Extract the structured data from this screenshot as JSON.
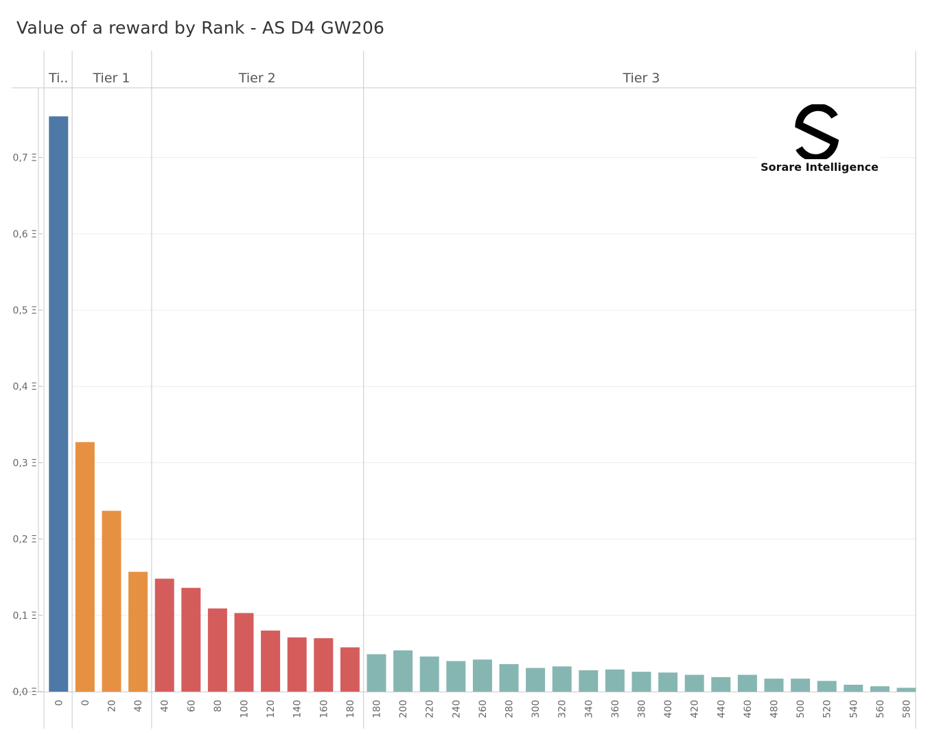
{
  "chart_data": {
    "type": "bar",
    "title": "Value of a reward by Rank - AS D4 GW206",
    "xlabel": "",
    "ylabel": "",
    "ylim": [
      0,
      0.75
    ],
    "y_ticks": [
      "0,0 Ξ",
      "0,1 Ξ",
      "0,2 Ξ",
      "0,3 Ξ",
      "0,4 Ξ",
      "0,5 Ξ",
      "0,6 Ξ",
      "0,7 Ξ"
    ],
    "y_tick_values": [
      0,
      0.1,
      0.2,
      0.3,
      0.4,
      0.5,
      0.6,
      0.7
    ],
    "grid": true,
    "groups": [
      {
        "name": "Ti..",
        "color": "#4e79a7",
        "categories": [
          "0"
        ],
        "values": [
          0.754
        ]
      },
      {
        "name": "Tier 1",
        "color": "#e69142",
        "categories": [
          "0",
          "20",
          "40"
        ],
        "values": [
          0.327,
          0.237,
          0.157
        ]
      },
      {
        "name": "Tier 2",
        "color": "#d45d5c",
        "categories": [
          "40",
          "60",
          "80",
          "100",
          "120",
          "140",
          "160",
          "180"
        ],
        "values": [
          0.148,
          0.136,
          0.109,
          0.103,
          0.08,
          0.071,
          0.07,
          0.058
        ]
      },
      {
        "name": "Tier 3",
        "color": "#86b6b2",
        "categories": [
          "180",
          "200",
          "220",
          "240",
          "260",
          "280",
          "300",
          "320",
          "340",
          "360",
          "380",
          "400",
          "420",
          "440",
          "460",
          "480",
          "500",
          "520",
          "540",
          "560",
          "580"
        ],
        "values": [
          0.049,
          0.054,
          0.046,
          0.04,
          0.042,
          0.036,
          0.031,
          0.033,
          0.028,
          0.029,
          0.026,
          0.025,
          0.022,
          0.019,
          0.022,
          0.017,
          0.017,
          0.014,
          0.009,
          0.007,
          0.005
        ]
      }
    ]
  },
  "logo": {
    "text": "Sorare Intelligence"
  }
}
